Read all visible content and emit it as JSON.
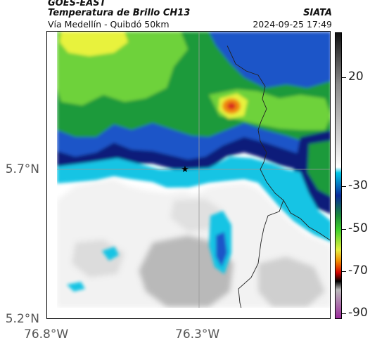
{
  "header": {
    "satellite": "GOES-EAST",
    "product": "Temperatura de Brillo CH13",
    "route": "Vía Medellín - Quibdó 50km",
    "org": "SIATA",
    "timestamp": "2024-09-25 17:49"
  },
  "axes": {
    "y_ticks": [
      "5.7°N",
      "5.2°N"
    ],
    "x_ticks": [
      "76.8°W",
      "76.3°W"
    ]
  },
  "colorbar": {
    "ticks": [
      "20",
      "-30",
      "-50",
      "-70",
      "-90"
    ],
    "colors": [
      "#111111",
      "#8a8a8a",
      "#d9d9d9",
      "#ffffff",
      "#00c8e8",
      "#0a2a9a",
      "#1a8a3a",
      "#3fd02a",
      "#e6f040",
      "#f28c00",
      "#d40000",
      "#000000",
      "#bbbbbb",
      "#9b2a9b"
    ]
  },
  "map": {
    "marker": "star-marker",
    "colors": {
      "cloud_white": "#f2f2f2",
      "cloud_gray": "#b9b9b9",
      "cyan": "#18c4e4",
      "blue": "#1a55c8",
      "navy": "#0c1c7a",
      "green": "#1f9a3a",
      "lime": "#6ed23a",
      "yellow": "#e8f23e",
      "orange": "#f08a10",
      "red": "#d82a1a"
    }
  }
}
